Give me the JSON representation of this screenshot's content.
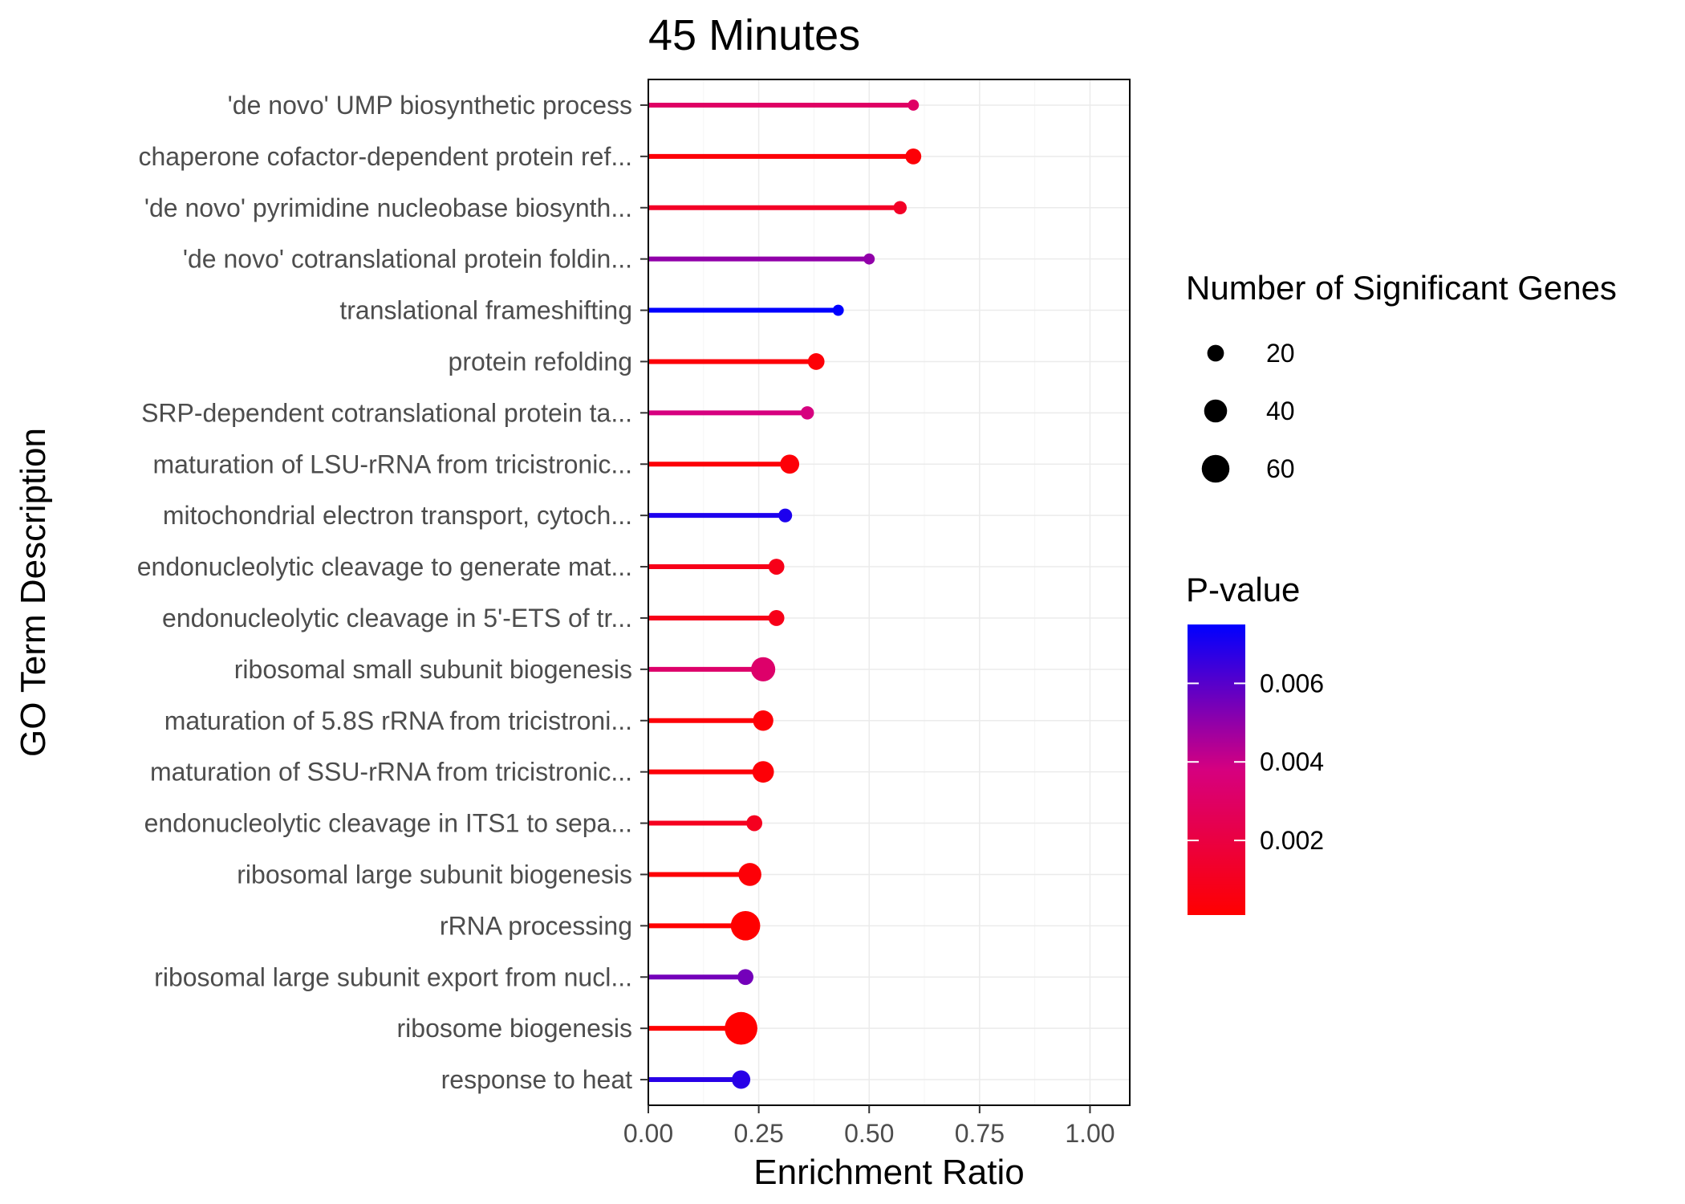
{
  "chart_data": {
    "type": "lollipop",
    "title": "45 Minutes",
    "xlabel": "Enrichment Ratio",
    "ylabel": "GO Term Description",
    "xlim": [
      0,
      1.09
    ],
    "x_ticks": [
      0.0,
      0.25,
      0.5,
      0.75,
      1.0
    ],
    "x_tick_labels": [
      "0.00",
      "0.25",
      "0.50",
      "0.75",
      "1.00"
    ],
    "grid": true,
    "legend_position": "right",
    "categories": [
      "'de novo' UMP biosynthetic process",
      "chaperone cofactor-dependent protein ref...",
      "'de novo' pyrimidine nucleobase biosynth...",
      "'de novo' cotranslational protein foldin...",
      "translational frameshifting",
      "protein refolding",
      "SRP-dependent cotranslational protein ta...",
      "maturation of LSU-rRNA from tricistronic...",
      "mitochondrial electron transport, cytoch...",
      "endonucleolytic cleavage to generate mat...",
      "endonucleolytic cleavage in 5'-ETS of tr...",
      "ribosomal small subunit biogenesis",
      "maturation of 5.8S rRNA from tricistroni...",
      "maturation of SSU-rRNA from tricistronic...",
      "endonucleolytic cleavage in ITS1 to sepa...",
      "ribosomal large subunit biogenesis",
      "rRNA processing",
      "ribosomal large subunit export from nucl...",
      "ribosome biogenesis",
      "response to heat"
    ],
    "values": [
      0.6,
      0.6,
      0.57,
      0.5,
      0.43,
      0.38,
      0.36,
      0.32,
      0.31,
      0.29,
      0.29,
      0.26,
      0.26,
      0.26,
      0.24,
      0.23,
      0.22,
      0.22,
      0.21,
      0.21
    ],
    "num_significant_genes": [
      8,
      18,
      12,
      8,
      8,
      20,
      12,
      27,
      13,
      18,
      18,
      45,
      31,
      35,
      18,
      40,
      68,
      18,
      85,
      25
    ],
    "p_values": [
      0.003,
      0.0003,
      0.0012,
      0.005,
      0.0075,
      0.0003,
      0.0038,
      0.0003,
      0.007,
      0.0008,
      0.0008,
      0.0032,
      0.0003,
      0.0003,
      0.001,
      0.0003,
      0.0001,
      0.0055,
      0.0001,
      0.0068
    ],
    "size_legend": {
      "title": "Number of Significant Genes",
      "values": [
        20,
        40,
        60
      ],
      "labels": [
        "20",
        "40",
        "60"
      ]
    },
    "color_legend": {
      "title": "P-value",
      "range": [
        0.0001,
        0.0075
      ],
      "low_color": "#ff0000",
      "high_color": "#0000ff",
      "ticks": [
        0.006,
        0.004,
        0.002
      ],
      "labels": [
        "0.006",
        "0.004",
        "0.002"
      ]
    }
  }
}
